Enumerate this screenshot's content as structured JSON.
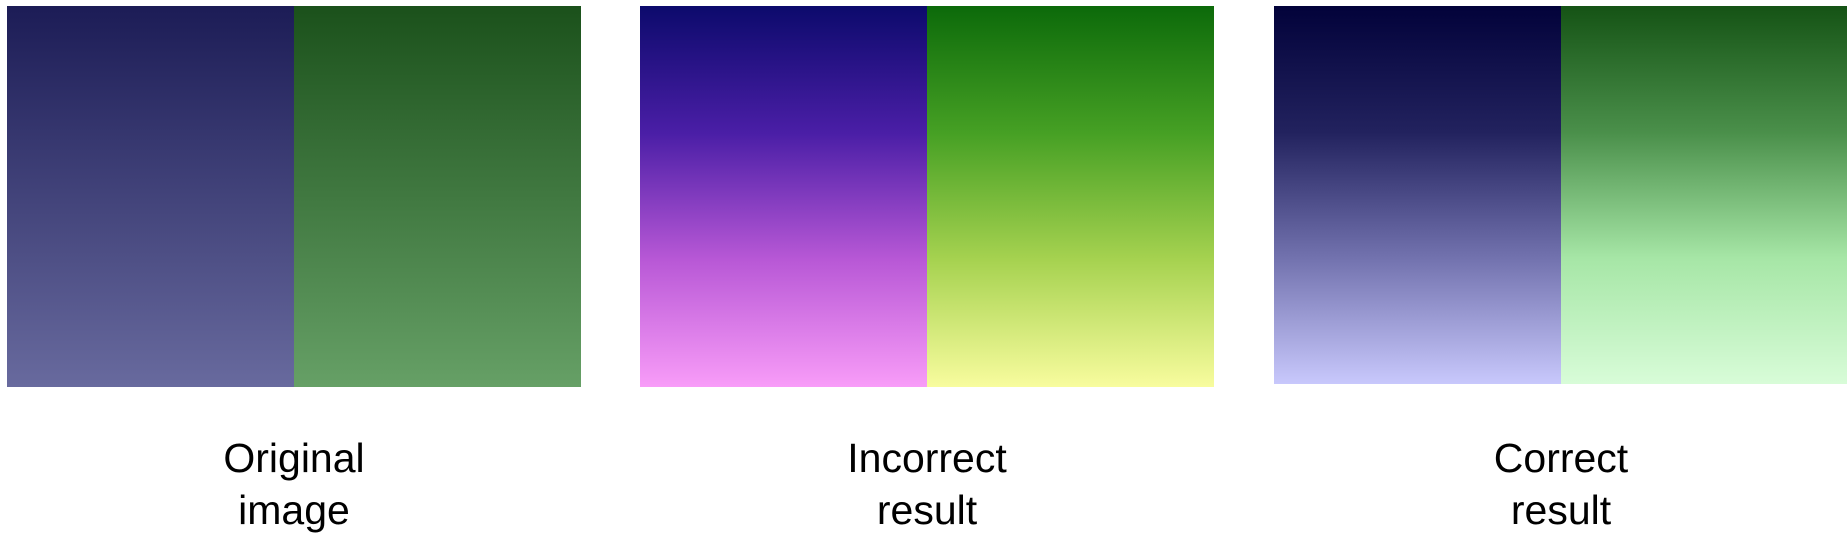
{
  "panels": [
    {
      "caption_line1": "Original",
      "caption_line2": "image",
      "left_gradient": [
        "#1c1c56",
        "#686a9e"
      ],
      "right_gradient": [
        "#1b511b",
        "#66a066"
      ]
    },
    {
      "caption_line1": "Incorrect",
      "caption_line2": "result",
      "left_gradient": [
        "#0c0a6c",
        "#4a1ea6",
        "#b858d6",
        "#f89cf8"
      ],
      "right_gradient": [
        "#0c6a0a",
        "#46a024",
        "#a6d250",
        "#f8fc9e"
      ]
    },
    {
      "caption_line1": "Correct",
      "caption_line2": "result",
      "left_gradient": [
        "#02023a",
        "#22225e",
        "#7272ae",
        "#c8c8fc"
      ],
      "right_gradient": [
        "#155315",
        "#4a8f4a",
        "#a6e6a6",
        "#d8fcd8"
      ]
    }
  ]
}
